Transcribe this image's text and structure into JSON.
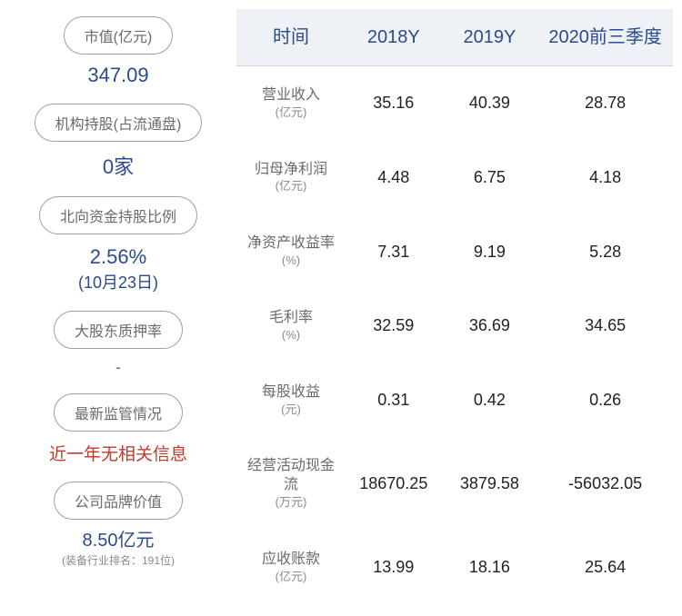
{
  "sidebar": {
    "items": [
      {
        "label": "市值(亿元)",
        "value": "347.09",
        "value_class": "side-value"
      },
      {
        "label": "机构持股(占流通盘)",
        "value": "0家",
        "value_class": "side-value"
      },
      {
        "label": "北向资金持股比例",
        "value": "2.56%",
        "sub": "(10月23日)",
        "value_class": "side-value-sub"
      },
      {
        "label": "大股东质押率",
        "value": "-",
        "value_class": "side-value-dash"
      },
      {
        "label": "最新监管情况",
        "value": "近一年无相关信息",
        "value_class": "side-value-red"
      },
      {
        "label": "公司品牌价值",
        "value": "8.50亿元",
        "rank": "(装备行业排名：191位)",
        "value_class": "side-value-brand"
      }
    ]
  },
  "table": {
    "type": "table",
    "columns": [
      "时间",
      "2018Y",
      "2019Y",
      "2020前三季度"
    ],
    "rows": [
      {
        "metric": "营业收入",
        "unit": "(亿元)",
        "v1": "35.16",
        "v2": "40.39",
        "v3": "28.78"
      },
      {
        "metric": "归母净利润",
        "unit": "(亿元)",
        "v1": "4.48",
        "v2": "6.75",
        "v3": "4.18"
      },
      {
        "metric": "净资产收益率",
        "unit": "(%)",
        "v1": "7.31",
        "v2": "9.19",
        "v3": "5.28"
      },
      {
        "metric": "毛利率",
        "unit": "(%)",
        "v1": "32.59",
        "v2": "36.69",
        "v3": "34.65"
      },
      {
        "metric": "每股收益",
        "unit": "(元)",
        "v1": "0.31",
        "v2": "0.42",
        "v3": "0.26"
      },
      {
        "metric": "经营活动现金流",
        "unit": "(万元)",
        "v1": "18670.25",
        "v2": "3879.58",
        "v3": "-56032.05"
      },
      {
        "metric": "应收账款",
        "unit": "(亿元)",
        "v1": "13.99",
        "v2": "18.16",
        "v3": "25.64"
      }
    ],
    "styling": {
      "header_bg": "#eef1f6",
      "header_color": "#2b4b8d",
      "header_fontsize": 20,
      "metric_color": "#6b6b6b",
      "metric_fontsize": 16,
      "value_color": "#222222",
      "value_fontsize": 18,
      "row_padding_v": 22,
      "border_color": "#d0d4db",
      "col_widths_pct": [
        25,
        22,
        22,
        31
      ]
    }
  },
  "colors": {
    "accent_blue": "#2b4b8d",
    "pill_border": "#9aa0a6",
    "pill_text": "#6b6b6b",
    "alert_red": "#c0392b",
    "background": "#ffffff"
  }
}
